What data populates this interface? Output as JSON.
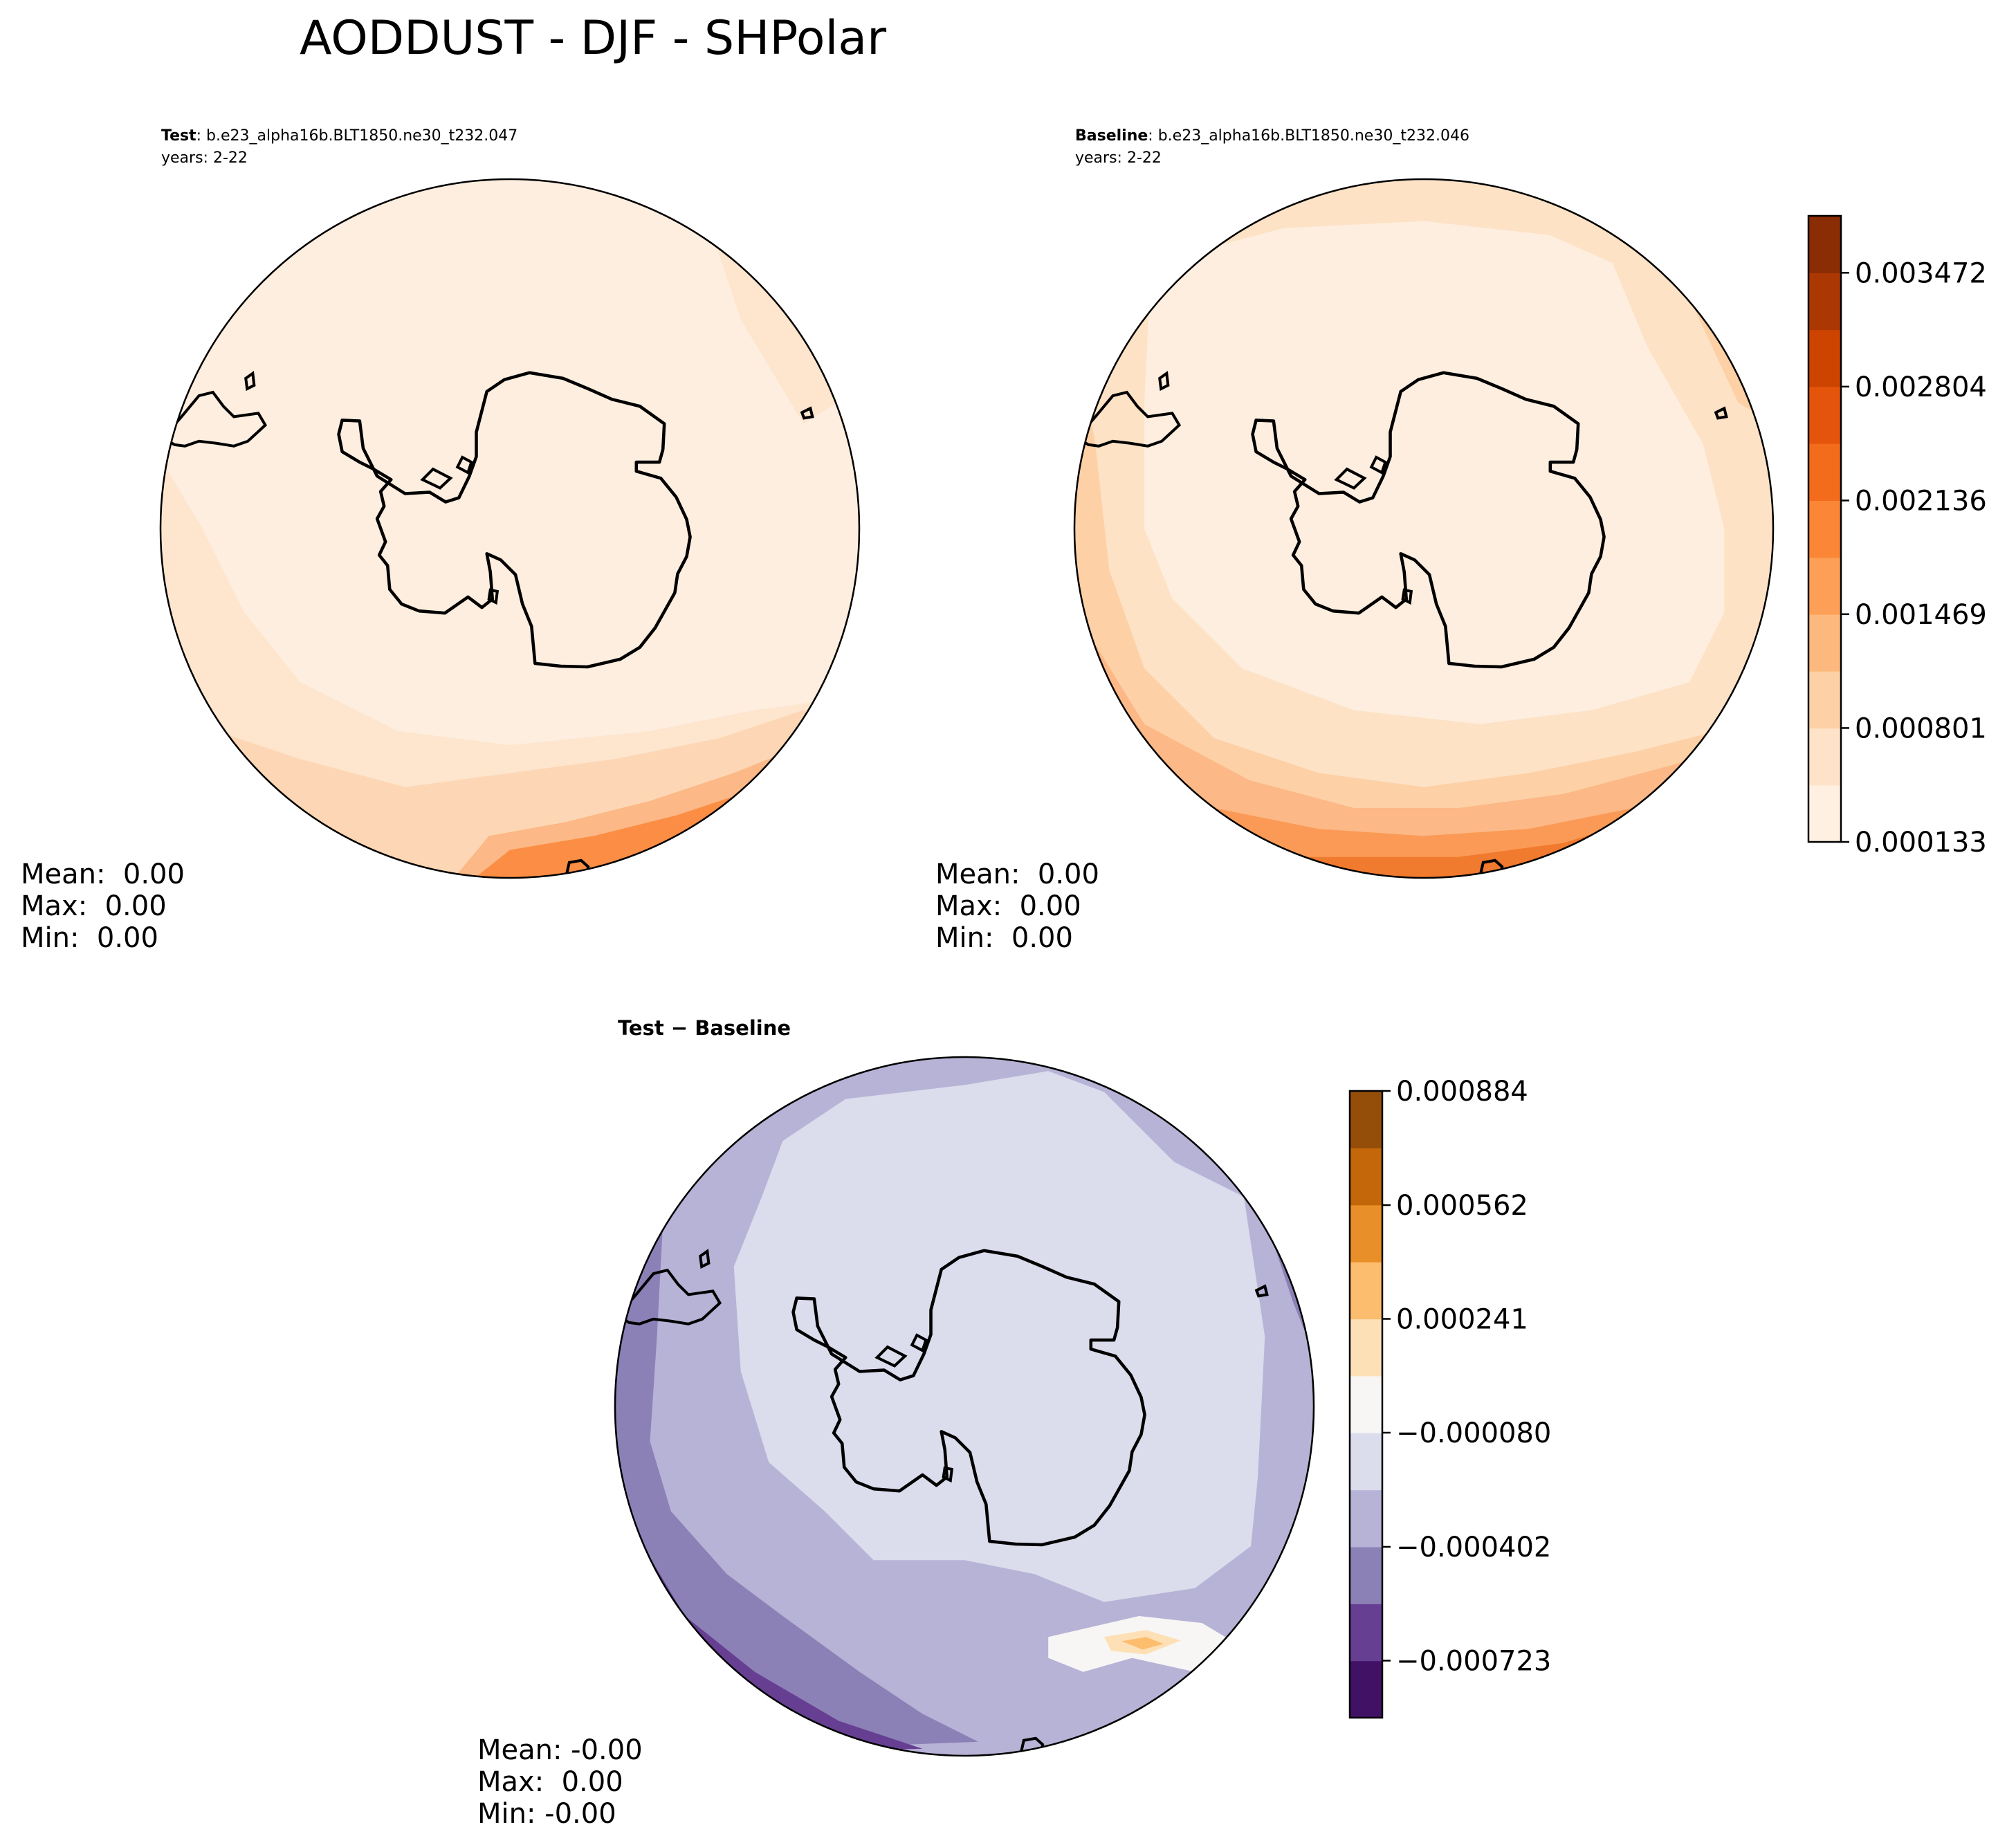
{
  "figure": {
    "title": "AODDUST - DJF - SHPolar"
  },
  "chart_data": [
    {
      "type": "heatmap",
      "panel": "test",
      "projection": "south-polar-stereographic",
      "title_bold": "Test",
      "title_rest": ": b.e23_alpha16b.BLT1850.ne30_t232.047",
      "years": "years: 2-22",
      "stats": [
        "Mean:  0.00",
        "Max:  0.00",
        "Min:  0.00"
      ],
      "colormap": "Oranges",
      "colorbar": "shared-with-baseline"
    },
    {
      "type": "heatmap",
      "panel": "baseline",
      "projection": "south-polar-stereographic",
      "title_bold": "Baseline",
      "title_rest": ": b.e23_alpha16b.BLT1850.ne30_t232.046",
      "years": "years: 2-22",
      "stats": [
        "Mean:  0.00",
        "Max:  0.00",
        "Min:  0.00"
      ],
      "colormap": "Oranges",
      "colorbar": {
        "levels": 11,
        "range": [
          0.000133,
          0.003806
        ],
        "ticks": [
          0.000133,
          0.000801,
          0.001469,
          0.002136,
          0.002804,
          0.003472
        ],
        "tick_labels": [
          "0.000133",
          "0.000801",
          "0.001469",
          "0.002136",
          "0.002804",
          "0.003472"
        ],
        "colors": [
          "#fff0e1",
          "#fee3c8",
          "#fdd1a5",
          "#fdb97d",
          "#fd9f56",
          "#fb8635",
          "#f26c1b",
          "#e5540b",
          "#cd4401",
          "#ab3803",
          "#8a2c04"
        ]
      }
    },
    {
      "type": "heatmap",
      "panel": "difference",
      "projection": "south-polar-stereographic",
      "title": "Test − Baseline",
      "stats": [
        "Mean: -0.00",
        "Max:  0.00",
        "Min: -0.00"
      ],
      "colormap": "PuOr_r",
      "colorbar": {
        "levels": 11,
        "range": [
          -0.000884,
          0.000884
        ],
        "ticks": [
          -0.000723,
          -0.000402,
          -8e-05,
          0.000241,
          0.000562,
          0.000884
        ],
        "tick_labels": [
          "−0.000723",
          "−0.000402",
          "−0.000080",
          "0.000241",
          "0.000562",
          "0.000884"
        ],
        "colors": [
          "#401164",
          "#663f92",
          "#8c81b6",
          "#b7b3d6",
          "#dbdcec",
          "#f7f6f5",
          "#fee0b6",
          "#fdbd6e",
          "#e88f29",
          "#c3670a",
          "#954e0a"
        ]
      }
    }
  ]
}
